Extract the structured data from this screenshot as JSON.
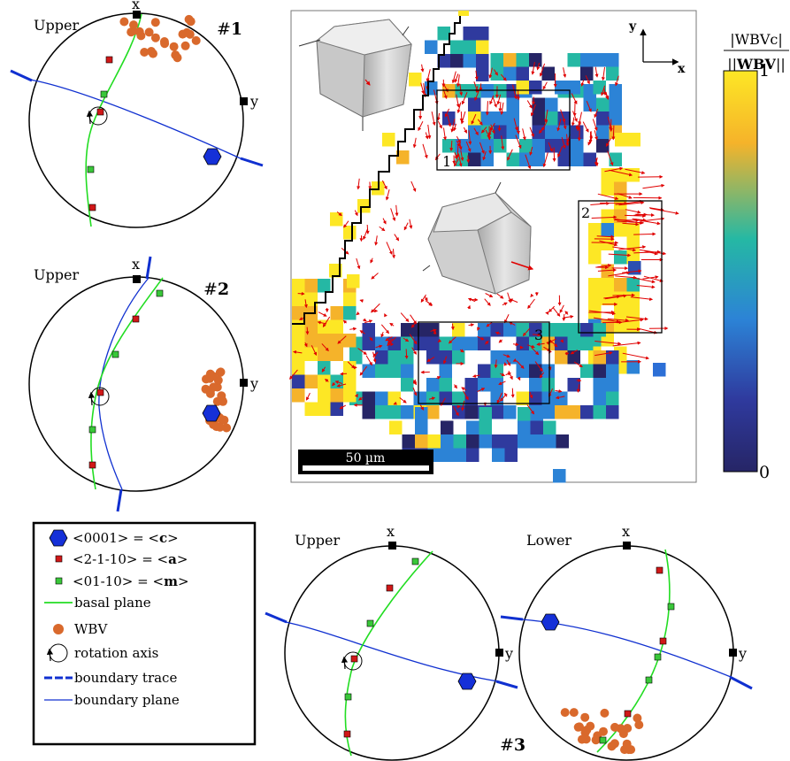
{
  "colors": {
    "wbv": "#d9692c",
    "c_axis": "#1530d8",
    "a_axis": "#d01818",
    "m_axis": "#39c739",
    "basal_plane": "#22dd22",
    "boundary": "#1030d0",
    "vector": "#e00000"
  },
  "pole_figures": {
    "pf1": {
      "hemisphere": "Upper",
      "id_prefix": "#",
      "id_num": "1",
      "x_label": "x",
      "y_label": "y"
    },
    "pf2": {
      "hemisphere": "Upper",
      "id_prefix": "#",
      "id_num": "2",
      "x_label": "x",
      "y_label": "y"
    },
    "pf3u": {
      "hemisphere": "Upper",
      "x_label": "x",
      "y_label": "y"
    },
    "pf3l": {
      "hemisphere": "Lower",
      "x_label": "x",
      "y_label": "y"
    },
    "pf3_id_prefix": "#",
    "pf3_id_num": "3"
  },
  "map": {
    "axis_x": "x",
    "axis_y": "y",
    "regions": [
      "1",
      "2",
      "3"
    ],
    "scalebar": "50 µm"
  },
  "colorbar": {
    "label_top": "|WBVc|",
    "label_bottom_pre": "||",
    "label_bottom_bold": "WBV",
    "label_bottom_post": "||",
    "max": "1",
    "min": "0",
    "stops": [
      "#fde725",
      "#f5b32a",
      "#25b8a4",
      "#2c83d6",
      "#2f3a9e",
      "#262566"
    ]
  },
  "legend": {
    "c_pre": "<0001> = <",
    "c_bold": "c",
    "c_post": ">",
    "a_pre": "<2-1-10> = <",
    "a_bold": "a",
    "a_post": ">",
    "m_pre": "<01-10> = <",
    "m_bold": "m",
    "m_post": ">",
    "basal": "basal plane",
    "wbv": "WBV",
    "rotation": "rotation axis",
    "trace": "boundary trace",
    "plane": "boundary plane"
  }
}
